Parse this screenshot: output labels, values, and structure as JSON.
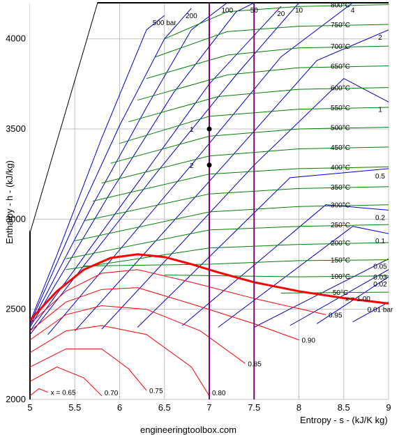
{
  "chart_data": {
    "type": "line",
    "title": "",
    "xlabel": "Entropy - s - (kJ/K kg)",
    "ylabel": "Enthalpy - h - (kJ/kg)",
    "xlim": [
      5,
      9
    ],
    "ylim": [
      2000,
      4200
    ],
    "grid": true,
    "x_ticks": [
      {
        "value": 5,
        "label": "5"
      },
      {
        "value": 5.5,
        "label": "5.5"
      },
      {
        "value": 6,
        "label": "6"
      },
      {
        "value": 6.5,
        "label": "6.5"
      },
      {
        "value": 7,
        "label": "7"
      },
      {
        "value": 7.5,
        "label": "7.5"
      },
      {
        "value": 8,
        "label": "8"
      },
      {
        "value": 8.5,
        "label": "8.5"
      },
      {
        "value": 9,
        "label": "9"
      }
    ],
    "y_ticks": [
      {
        "value": 2000,
        "label": "2000"
      },
      {
        "value": 2500,
        "label": "2500"
      },
      {
        "value": 3000,
        "label": "3000"
      },
      {
        "value": 3500,
        "label": "3500"
      },
      {
        "value": 4000,
        "label": "4000"
      }
    ],
    "saturation_line": {
      "label": "x = 1.00",
      "points": [
        [
          5.0,
          2440
        ],
        [
          5.3,
          2600
        ],
        [
          5.6,
          2720
        ],
        [
          5.9,
          2785
        ],
        [
          6.2,
          2805
        ],
        [
          6.5,
          2790
        ],
        [
          6.8,
          2750
        ],
        [
          7.1,
          2705
        ],
        [
          7.5,
          2650
        ],
        [
          8.0,
          2600
        ],
        [
          8.5,
          2562
        ],
        [
          9.0,
          2532
        ]
      ]
    },
    "quality_lines": [
      {
        "label": "0.95",
        "points": [
          [
            5.0,
            2420
          ],
          [
            5.4,
            2600
          ],
          [
            5.8,
            2700
          ],
          [
            6.2,
            2720
          ],
          [
            6.8,
            2650
          ],
          [
            7.5,
            2560
          ],
          [
            8.3,
            2470
          ]
        ]
      },
      {
        "label": "0.90",
        "points": [
          [
            5.0,
            2380
          ],
          [
            5.4,
            2540
          ],
          [
            5.8,
            2610
          ],
          [
            6.2,
            2620
          ],
          [
            6.8,
            2530
          ],
          [
            7.5,
            2420
          ],
          [
            8.0,
            2330
          ]
        ]
      },
      {
        "label": "0.85",
        "points": [
          [
            5.0,
            2330
          ],
          [
            5.4,
            2470
          ],
          [
            5.8,
            2520
          ],
          [
            6.3,
            2500
          ],
          [
            6.9,
            2380
          ],
          [
            7.4,
            2200
          ]
        ]
      },
      {
        "label": "0.80",
        "points": [
          [
            5.0,
            2260
          ],
          [
            5.4,
            2380
          ],
          [
            5.8,
            2410
          ],
          [
            6.3,
            2360
          ],
          [
            6.8,
            2180
          ],
          [
            7.0,
            2020
          ]
        ]
      },
      {
        "label": "0.75",
        "points": [
          [
            5.0,
            2180
          ],
          [
            5.4,
            2280
          ],
          [
            5.8,
            2280
          ],
          [
            6.1,
            2170
          ],
          [
            6.3,
            2050
          ]
        ]
      },
      {
        "label": "0.70",
        "points": [
          [
            5.0,
            2100
          ],
          [
            5.3,
            2180
          ],
          [
            5.6,
            2120
          ],
          [
            5.8,
            2020
          ]
        ]
      },
      {
        "label": "x = 0.65",
        "points": [
          [
            5.0,
            2020
          ],
          [
            5.1,
            2060
          ],
          [
            5.2,
            2040
          ]
        ]
      }
    ],
    "isobars": [
      {
        "label": "500 bar",
        "points": [
          [
            5.0,
            2430
          ],
          [
            5.3,
            2800
          ],
          [
            5.8,
            3450
          ],
          [
            6.3,
            4050
          ],
          [
            6.5,
            4130
          ]
        ]
      },
      {
        "label": "200",
        "points": [
          [
            5.0,
            2420
          ],
          [
            5.5,
            2980
          ],
          [
            6.0,
            3520
          ],
          [
            6.5,
            4000
          ],
          [
            6.8,
            4170
          ]
        ]
      },
      {
        "label": "100",
        "points": [
          [
            5.0,
            2410
          ],
          [
            5.7,
            3080
          ],
          [
            6.3,
            3620
          ],
          [
            6.8,
            4050
          ],
          [
            7.2,
            4200
          ]
        ]
      },
      {
        "label": "50",
        "points": [
          [
            5.0,
            2400
          ],
          [
            5.9,
            3150
          ],
          [
            6.6,
            3700
          ],
          [
            7.3,
            4150
          ],
          [
            7.5,
            4200
          ]
        ]
      },
      {
        "label": "20",
        "points": [
          [
            5.0,
            2380
          ],
          [
            6.2,
            3200
          ],
          [
            7.0,
            3750
          ],
          [
            7.8,
            4180
          ]
        ]
      },
      {
        "label": "10",
        "points": [
          [
            5.0,
            2360
          ],
          [
            6.4,
            3250
          ],
          [
            7.3,
            3800
          ],
          [
            8.0,
            4200
          ]
        ]
      },
      {
        "label": "4",
        "points": [
          [
            5.2,
            2360
          ],
          [
            6.8,
            3300
          ],
          [
            7.8,
            3900
          ],
          [
            8.6,
            4200
          ]
        ]
      },
      {
        "label": "2",
        "points": [
          [
            5.5,
            2380
          ],
          [
            7.2,
            3320
          ],
          [
            8.2,
            3880
          ],
          [
            9.0,
            4050
          ]
        ]
      },
      {
        "label": "1",
        "points": [
          [
            5.8,
            2390
          ],
          [
            7.5,
            3300
          ],
          [
            8.5,
            3780
          ],
          [
            9.0,
            3650
          ]
        ]
      },
      {
        "label": "0.5",
        "points": [
          [
            6.2,
            2400
          ],
          [
            7.9,
            3230
          ],
          [
            9.0,
            3280
          ]
        ]
      },
      {
        "label": "0.2",
        "points": [
          [
            6.7,
            2410
          ],
          [
            8.3,
            3080
          ],
          [
            9.0,
            3050
          ]
        ]
      },
      {
        "label": "0.1",
        "points": [
          [
            7.1,
            2400
          ],
          [
            8.6,
            2960
          ],
          [
            9.0,
            2920
          ]
        ]
      },
      {
        "label": "0.05",
        "points": [
          [
            7.5,
            2400
          ],
          [
            9.0,
            2780
          ]
        ]
      },
      {
        "label": "0.03",
        "points": [
          [
            7.9,
            2410
          ],
          [
            9.0,
            2720
          ]
        ]
      },
      {
        "label": "0.02",
        "points": [
          [
            8.2,
            2420
          ],
          [
            9.0,
            2680
          ]
        ]
      },
      {
        "label": "0.01 bar",
        "points": [
          [
            8.6,
            2430
          ],
          [
            9.0,
            2540
          ]
        ]
      }
    ],
    "isotherms": [
      {
        "label": "800°C",
        "points": [
          [
            6.5,
            4000
          ],
          [
            7.2,
            4150
          ],
          [
            8.0,
            4180
          ],
          [
            9.0,
            4190
          ]
        ]
      },
      {
        "label": "750°C",
        "points": [
          [
            6.4,
            3900
          ],
          [
            7.2,
            4040
          ],
          [
            8.0,
            4070
          ],
          [
            9.0,
            4080
          ]
        ]
      },
      {
        "label": "700°C",
        "points": [
          [
            6.3,
            3780
          ],
          [
            7.2,
            3910
          ],
          [
            8.0,
            3950
          ],
          [
            9.0,
            3960
          ]
        ]
      },
      {
        "label": "650°C",
        "points": [
          [
            6.2,
            3660
          ],
          [
            7.2,
            3800
          ],
          [
            8.0,
            3840
          ],
          [
            9.0,
            3850
          ]
        ]
      },
      {
        "label": "600°C",
        "points": [
          [
            6.1,
            3540
          ],
          [
            7.1,
            3680
          ],
          [
            8.0,
            3720
          ],
          [
            9.0,
            3730
          ]
        ]
      },
      {
        "label": "550°C",
        "points": [
          [
            6.0,
            3420
          ],
          [
            7.0,
            3570
          ],
          [
            8.0,
            3610
          ],
          [
            9.0,
            3620
          ]
        ]
      },
      {
        "label": "500°C",
        "points": [
          [
            5.9,
            3310
          ],
          [
            7.0,
            3460
          ],
          [
            8.0,
            3500
          ],
          [
            9.0,
            3510
          ]
        ]
      },
      {
        "label": "450°C",
        "points": [
          [
            5.8,
            3200
          ],
          [
            7.0,
            3350
          ],
          [
            8.0,
            3390
          ],
          [
            9.0,
            3400
          ]
        ]
      },
      {
        "label": "400°C",
        "points": [
          [
            5.7,
            3100
          ],
          [
            7.0,
            3250
          ],
          [
            8.0,
            3280
          ],
          [
            9.0,
            3290
          ]
        ]
      },
      {
        "label": "350°C",
        "points": [
          [
            5.6,
            2990
          ],
          [
            7.0,
            3140
          ],
          [
            8.0,
            3170
          ],
          [
            9.0,
            3180
          ]
        ]
      },
      {
        "label": "300°C",
        "points": [
          [
            5.5,
            2880
          ],
          [
            7.0,
            3040
          ],
          [
            8.0,
            3070
          ],
          [
            9.0,
            3080
          ]
        ]
      },
      {
        "label": "250°C",
        "points": [
          [
            5.4,
            2780
          ],
          [
            7.0,
            2940
          ],
          [
            8.0,
            2960
          ],
          [
            9.0,
            2970
          ]
        ]
      },
      {
        "label": "200°C",
        "points": [
          [
            5.4,
            2720
          ],
          [
            7.0,
            2840
          ],
          [
            8.0,
            2860
          ],
          [
            9.0,
            2870
          ]
        ]
      },
      {
        "label": "150°C",
        "points": [
          [
            5.6,
            2740
          ],
          [
            7.0,
            2750
          ],
          [
            8.0,
            2770
          ],
          [
            9.0,
            2775
          ]
        ]
      },
      {
        "label": "100°C",
        "points": [
          [
            6.5,
            2690
          ],
          [
            8.0,
            2680
          ],
          [
            9.0,
            2685
          ]
        ]
      },
      {
        "label": "50°C",
        "points": [
          [
            7.8,
            2590
          ],
          [
            9.0,
            2595
          ]
        ]
      }
    ],
    "vertical_markers": [
      {
        "x": 7.0,
        "color": "#800080"
      },
      {
        "x": 7.5,
        "color": "#800080"
      }
    ],
    "points": [
      {
        "label": "1",
        "x": 7.0,
        "y": 3500
      },
      {
        "label": "2",
        "x": 7.0,
        "y": 3300
      }
    ],
    "colors": {
      "isobar": "#0000cc",
      "isotherm": "#008000",
      "quality": "#ff0000",
      "saturation": "#ff0000",
      "grid": "#c0c0c0",
      "marker": "#800080"
    }
  },
  "footer": {
    "credit": "engineeringtoolbox.com"
  }
}
